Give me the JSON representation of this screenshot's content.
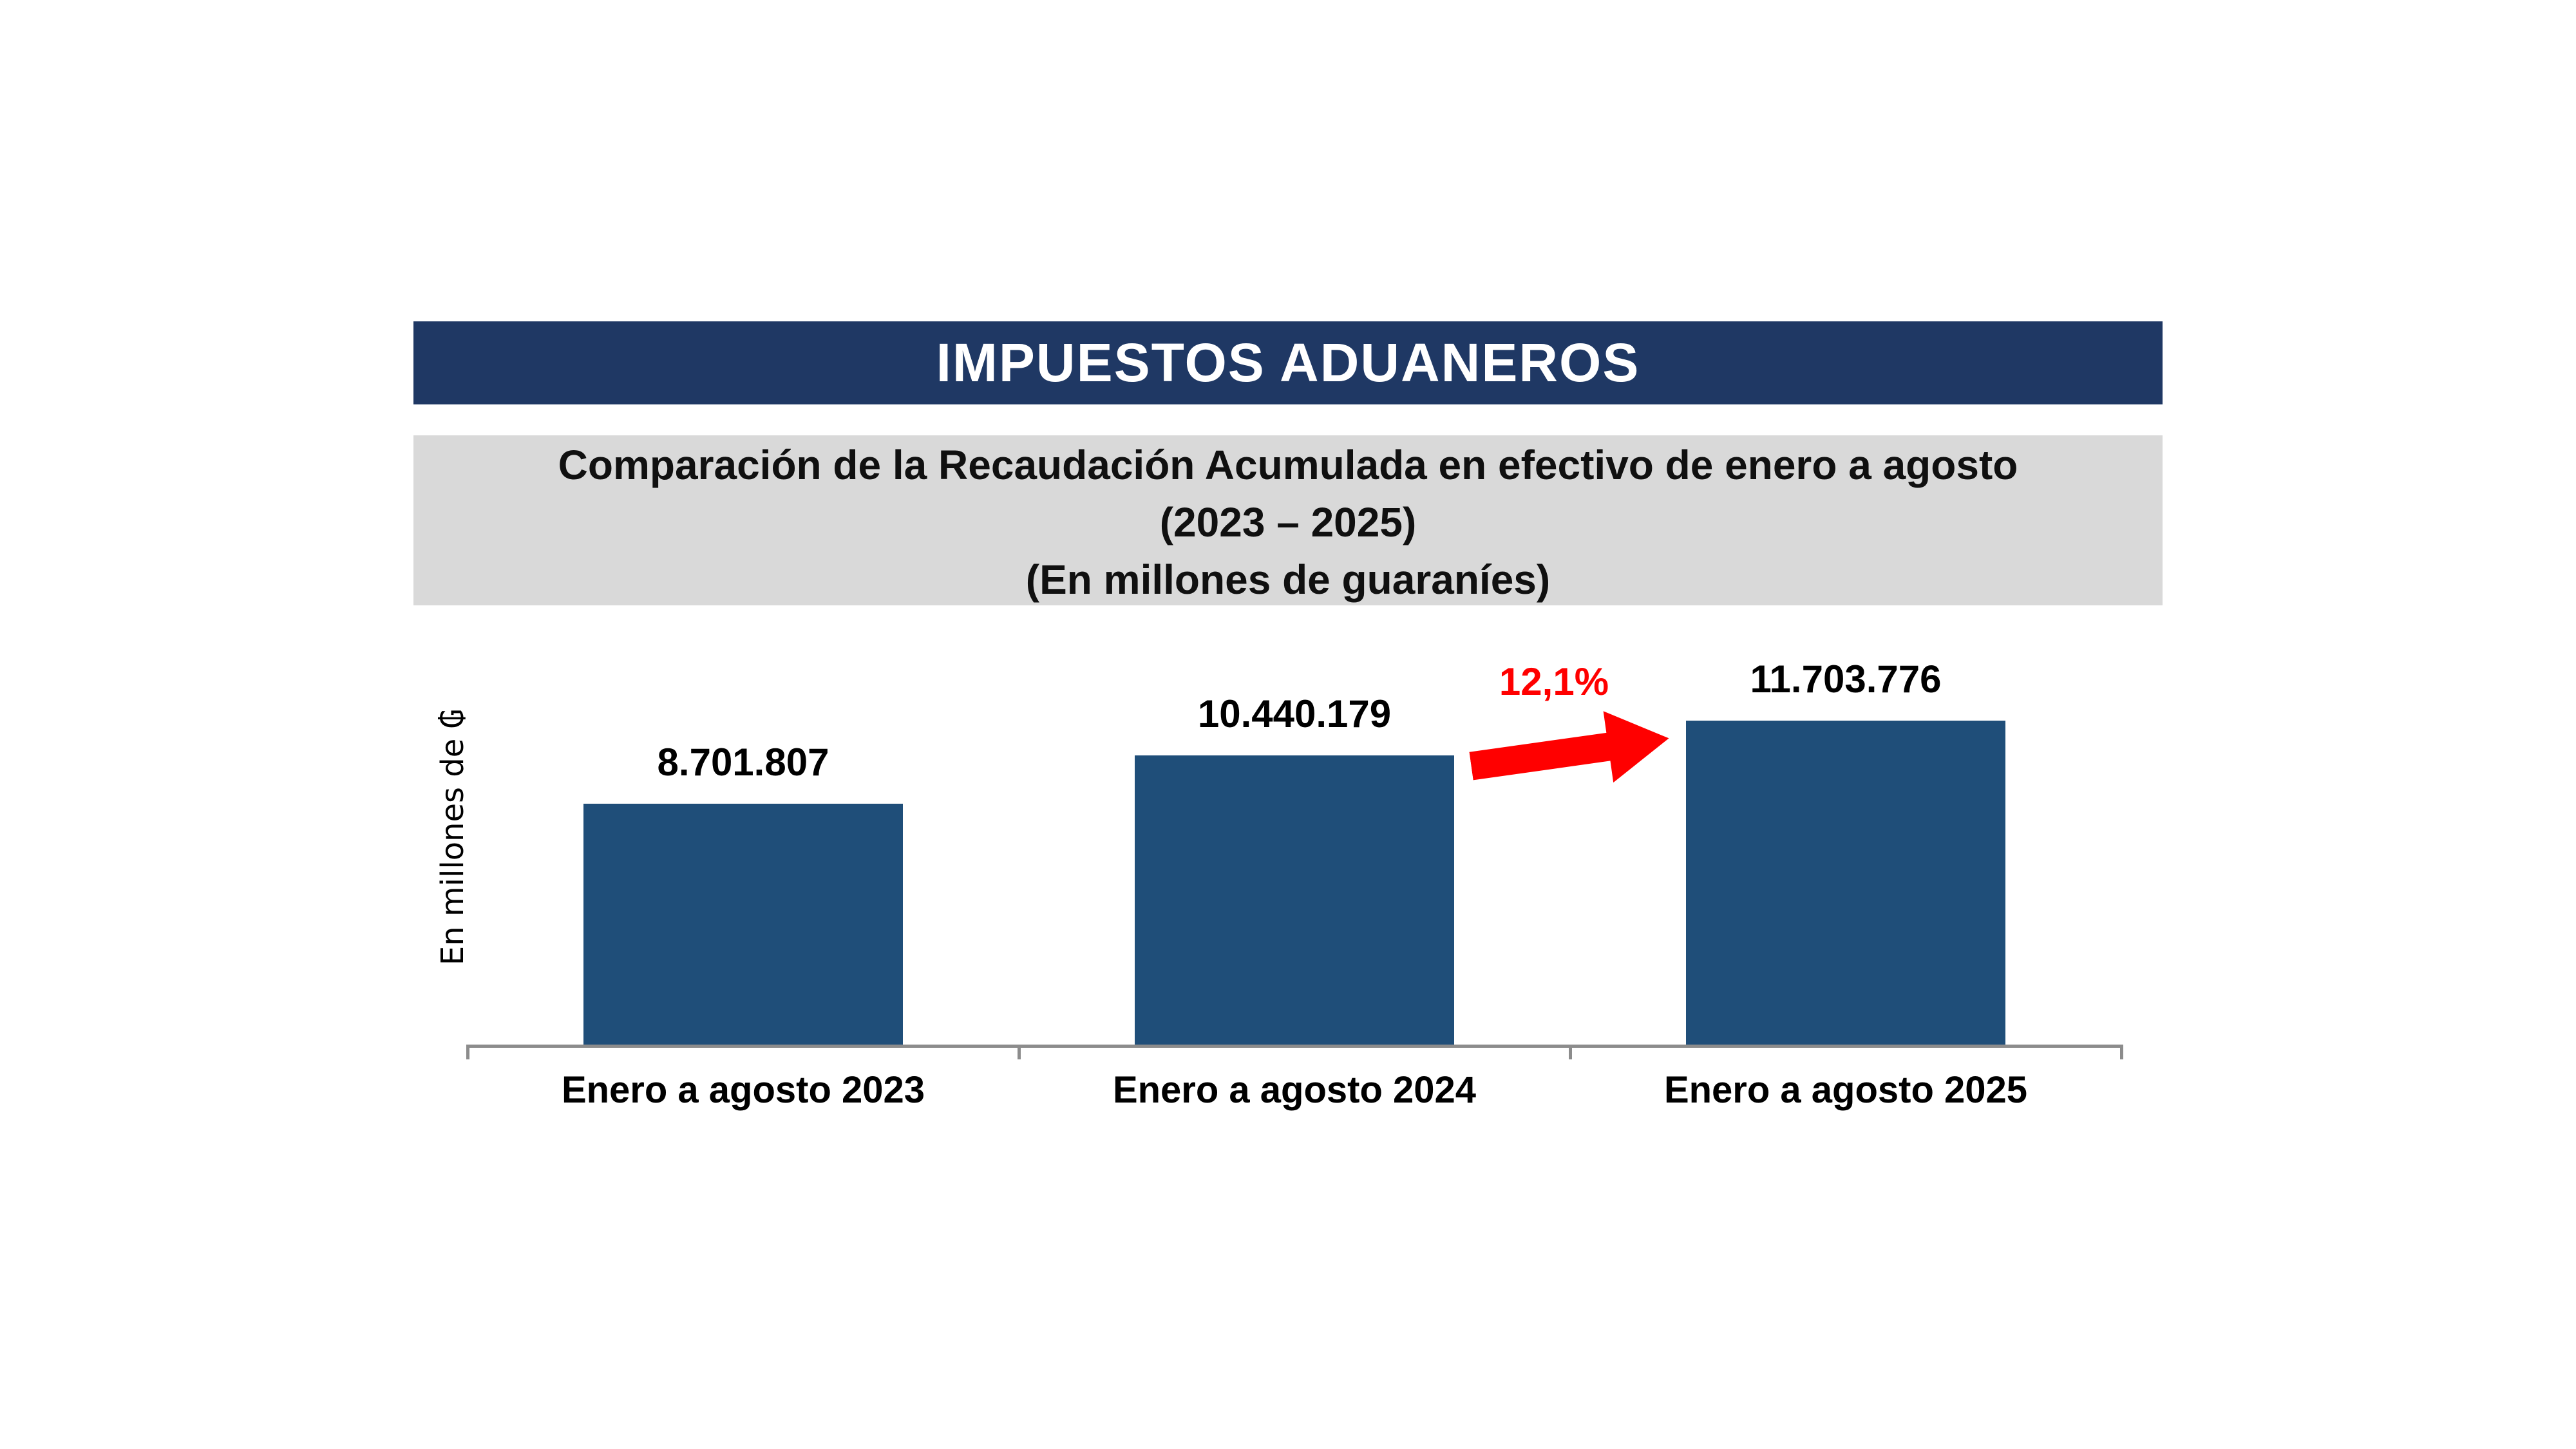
{
  "header": {
    "title": "IMPUESTOS ADUANEROS",
    "background_color": "#1F3864",
    "text_color": "#FFFFFF"
  },
  "subtitle": {
    "line1": "Comparación de la Recaudación Acumulada en efectivo de enero a agosto",
    "line2": "(2023 – 2025)",
    "line3": "(En millones de guaraníes)",
    "background_color": "#D9D9D9"
  },
  "chart_data": {
    "type": "bar",
    "title": "Comparación de la Recaudación Acumulada en efectivo de enero a agosto (2023 – 2025)",
    "units": "En millones de guaraníes",
    "categories": [
      "Enero a agosto 2023",
      "Enero a agosto 2024",
      "Enero a agosto 2025"
    ],
    "values": [
      8701807,
      10440179,
      11703776
    ],
    "value_labels": [
      "8.701.807",
      "10.440.179",
      "11.703.776"
    ],
    "xlabel": "",
    "ylabel": "En millones de ₲",
    "ylim": [
      0,
      12000000
    ],
    "grid": false,
    "legend": false,
    "bar_color": "#1F4E79",
    "axis_color": "#8C8C8C",
    "annotation": {
      "label": "12,1%",
      "meaning": "variación 2024 a 2025",
      "color": "#FF0000",
      "shape": "up-right-block-arrow"
    }
  }
}
